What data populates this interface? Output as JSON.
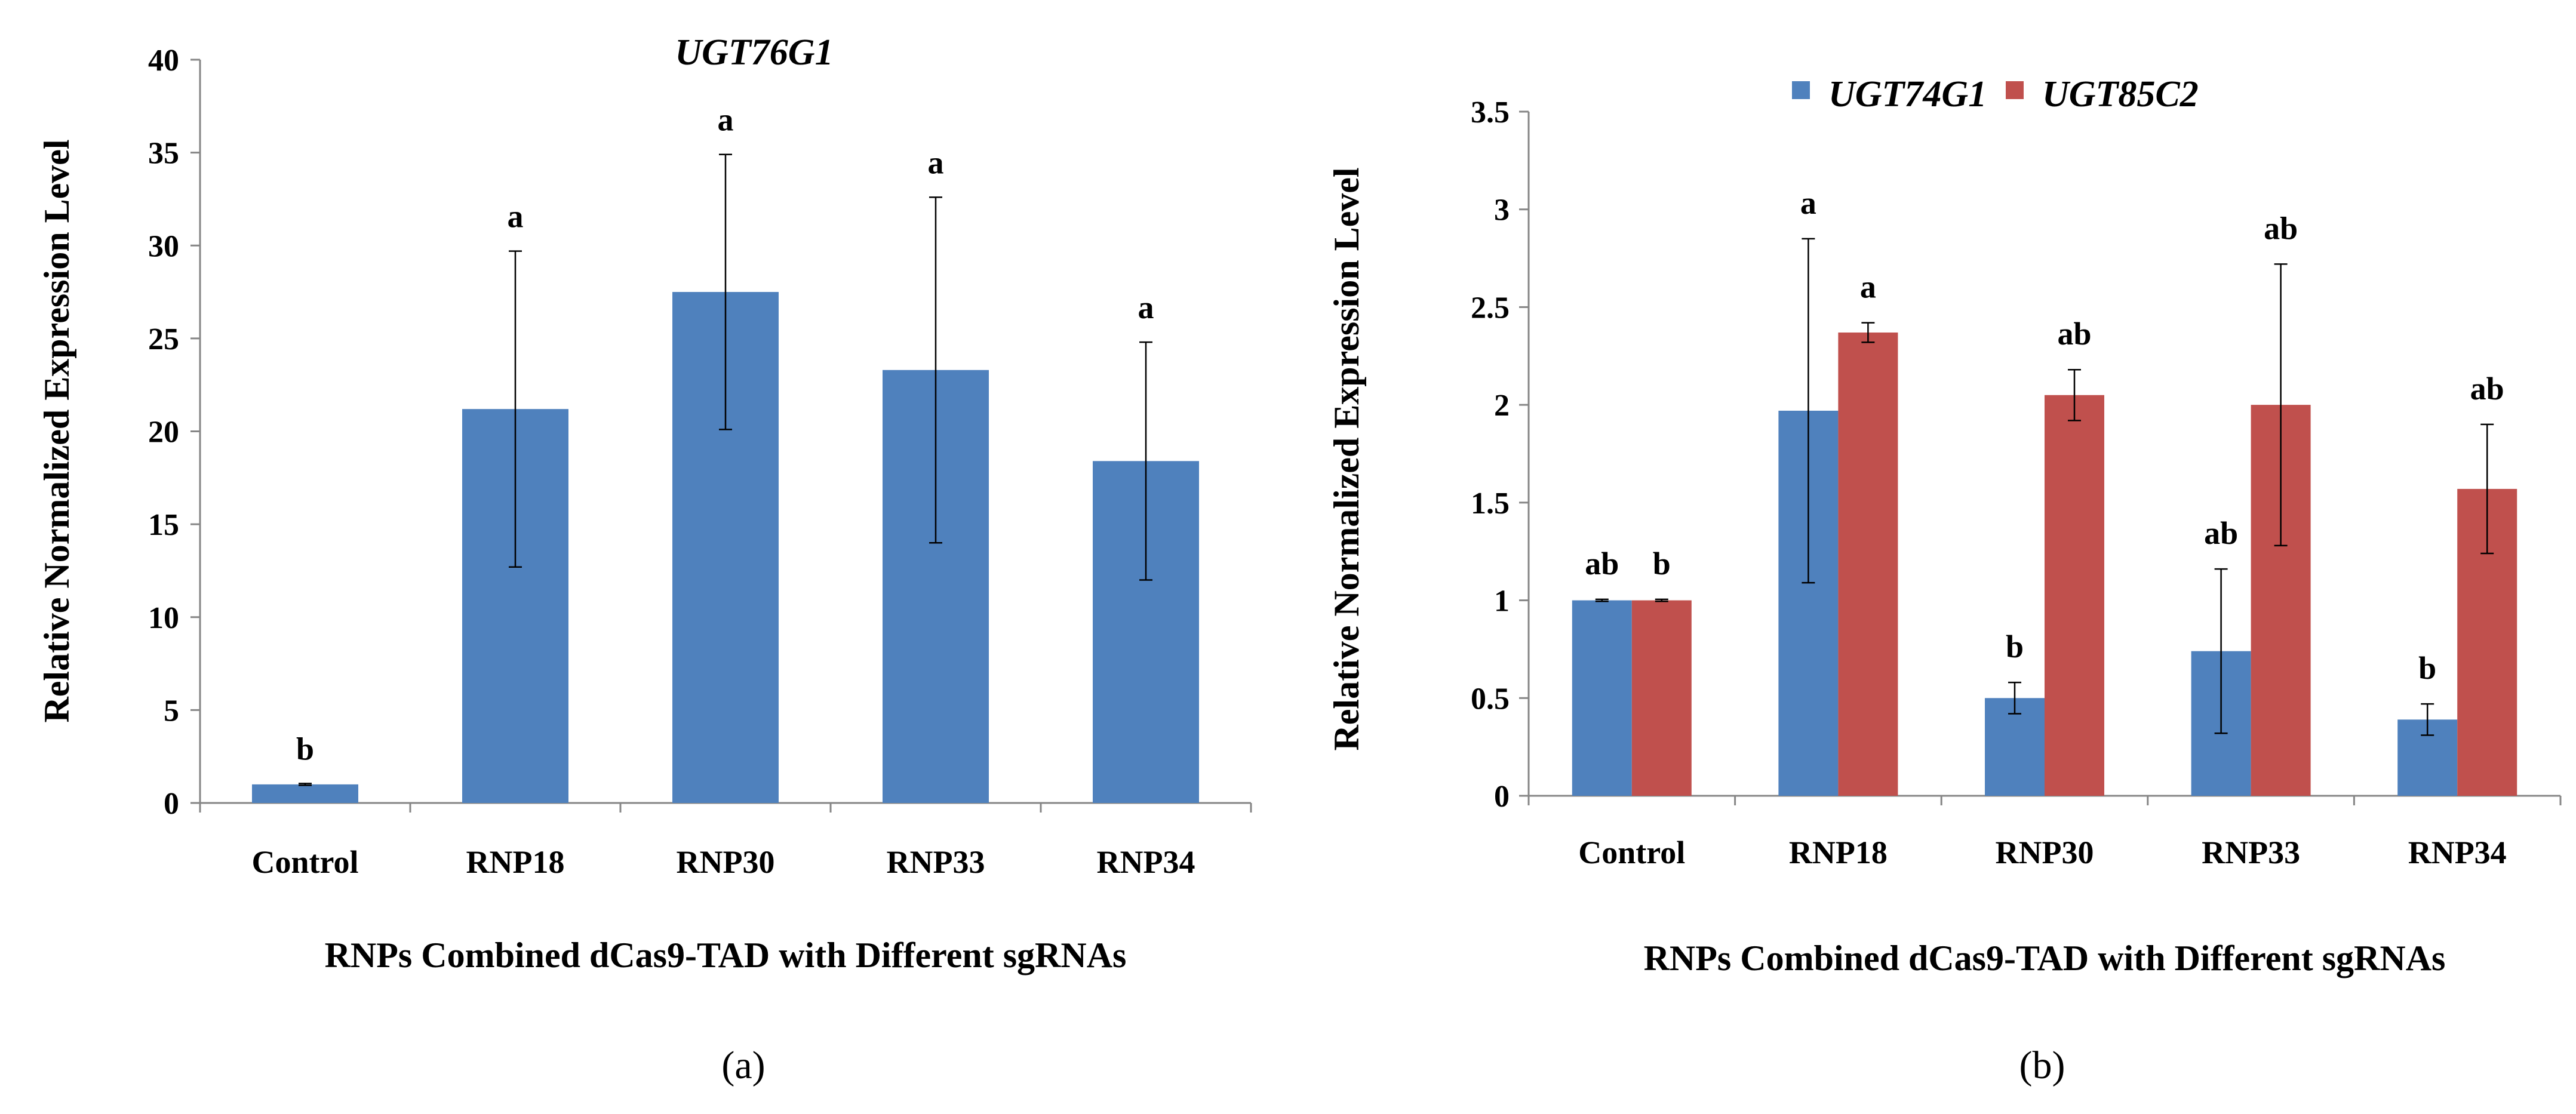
{
  "chart_data": [
    {
      "type": "bar",
      "panel_label": "(a)",
      "title": "UGT76G1",
      "xlabel": "RNPs Combined dCas9-TAD with Different sgRNAs",
      "ylabel": "Relative Normalized Expression Level",
      "ylim": [
        0,
        40
      ],
      "yticks": [
        0,
        5,
        10,
        15,
        20,
        25,
        30,
        35,
        40
      ],
      "ytick_labels": [
        "0",
        "5",
        "10",
        "15",
        "20",
        "25",
        "30",
        "35",
        "40"
      ],
      "categories": [
        "Control",
        "RNP18",
        "RNP30",
        "RNP33",
        "RNP34"
      ],
      "series": [
        {
          "name": "UGT76G1",
          "color": "#4f81bd",
          "values": [
            1.0,
            21.2,
            27.5,
            23.3,
            18.4
          ],
          "errors": [
            0.05,
            8.5,
            7.4,
            9.3,
            6.4
          ],
          "labels": [
            "b",
            "a",
            "a",
            "a",
            "a"
          ]
        }
      ],
      "legend": "none",
      "grid": false
    },
    {
      "type": "bar",
      "panel_label": "(b)",
      "title": "",
      "xlabel": "RNPs Combined dCas9-TAD with Different sgRNAs",
      "ylabel": "Relative Normalized Expression Level",
      "ylim": [
        0,
        3.5
      ],
      "yticks": [
        0,
        0.5,
        1,
        1.5,
        2,
        2.5,
        3,
        3.5
      ],
      "ytick_labels": [
        "0",
        "0.5",
        "1",
        "1.5",
        "2",
        "2.5",
        "3",
        "3.5"
      ],
      "categories": [
        "Control",
        "RNP18",
        "RNP30",
        "RNP33",
        "RNP34"
      ],
      "series": [
        {
          "name": "UGT74G1",
          "color": "#4f81bd",
          "values": [
            1.0,
            1.97,
            0.5,
            0.74,
            0.39
          ],
          "errors": [
            0.005,
            0.88,
            0.08,
            0.42,
            0.08
          ],
          "labels": [
            "ab",
            "a",
            "b",
            "ab",
            "b"
          ]
        },
        {
          "name": "UGT85C2",
          "color": "#c0504d",
          "values": [
            1.0,
            2.37,
            2.05,
            2.0,
            1.57
          ],
          "errors": [
            0.005,
            0.05,
            0.13,
            0.72,
            0.33
          ],
          "labels": [
            "b",
            "a",
            "ab",
            "ab",
            "ab"
          ]
        }
      ],
      "legend": "top",
      "grid": false
    }
  ]
}
